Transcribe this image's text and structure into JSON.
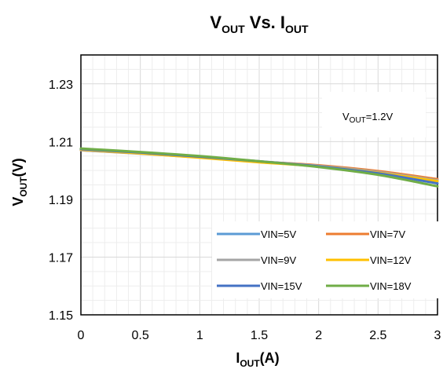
{
  "chart_data": {
    "type": "line",
    "title": {
      "main": "V",
      "main_sub": "OUT",
      "mid": " Vs. I",
      "mid_sub": "OUT"
    },
    "xlabel": {
      "main": "I",
      "sub": "OUT",
      "rest": "(A)"
    },
    "ylabel": {
      "main": "V",
      "sub": "OUT",
      "rest": "(V)"
    },
    "xlim": [
      0,
      3
    ],
    "ylim": [
      1.15,
      1.24
    ],
    "x_ticks": [
      "0",
      "0.5",
      "1",
      "1.5",
      "2",
      "2.5",
      "3"
    ],
    "y_ticks": [
      "1.15",
      "1.17",
      "1.19",
      "1.21",
      "1.23"
    ],
    "annotation": {
      "main": "V",
      "sub": "OUT",
      "rest": "=1.2V"
    },
    "legend_position": "bottom-right",
    "grid": true,
    "x": [
      0,
      0.5,
      1,
      1.5,
      2,
      2.5,
      3
    ],
    "series": [
      {
        "name": "VIN=5V",
        "color": "#5b9bd5",
        "values": [
          1.2072,
          1.2061,
          1.2047,
          1.2031,
          1.2016,
          1.1993,
          1.1962
        ]
      },
      {
        "name": "VIN=7V",
        "color": "#ed7d31",
        "values": [
          1.207,
          1.2059,
          1.2046,
          1.2031,
          1.2018,
          1.1998,
          1.197
        ]
      },
      {
        "name": "VIN=9V",
        "color": "#a5a5a5",
        "values": [
          1.207,
          1.2058,
          1.2045,
          1.203,
          1.2016,
          1.1995,
          1.1966
        ]
      },
      {
        "name": "VIN=12V",
        "color": "#ffc000",
        "values": [
          1.2072,
          1.2059,
          1.2044,
          1.2028,
          1.2014,
          1.1992,
          1.1963
        ]
      },
      {
        "name": "VIN=15V",
        "color": "#4472c4",
        "values": [
          1.2074,
          1.2062,
          1.2048,
          1.2032,
          1.2014,
          1.199,
          1.1955
        ]
      },
      {
        "name": "VIN=18V",
        "color": "#70ad47",
        "values": [
          1.2076,
          1.2064,
          1.205,
          1.2032,
          1.2012,
          1.1985,
          1.1945
        ]
      }
    ]
  }
}
